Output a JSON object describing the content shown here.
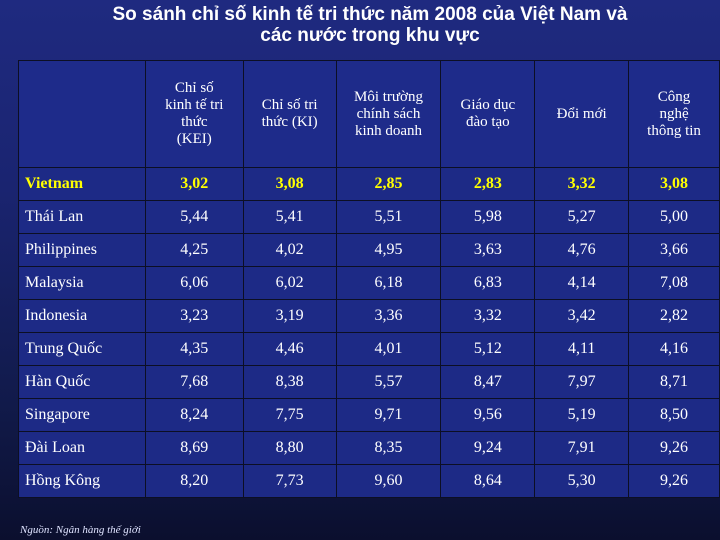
{
  "title": {
    "line1": "So sánh chỉ số kinh tế tri thức năm 2008 của Việt Nam và",
    "line2": "các nước trong khu vực"
  },
  "table": {
    "headers": [
      "",
      "Chỉ số\nkinh tế tri\nthức\n(KEI)",
      "Chỉ số tri\nthức (KI)",
      "Môi trường\nchính sách\nkinh doanh",
      "Giáo dục\nđào tạo",
      "Đổi mới",
      "Công\nnghệ\nthông tin"
    ],
    "rows": [
      {
        "country": "Vietnam",
        "values": [
          "3,02",
          "3,08",
          "2,85",
          "2,83",
          "3,32",
          "3,08"
        ]
      },
      {
        "country": "Thái Lan",
        "values": [
          "5,44",
          "5,41",
          "5,51",
          "5,98",
          "5,27",
          "5,00"
        ]
      },
      {
        "country": "Philippines",
        "values": [
          "4,25",
          "4,02",
          "4,95",
          "3,63",
          "4,76",
          "3,66"
        ]
      },
      {
        "country": "Malaysia",
        "values": [
          "6,06",
          "6,02",
          "6,18",
          "6,83",
          "4,14",
          "7,08"
        ]
      },
      {
        "country": "Indonesia",
        "values": [
          "3,23",
          "3,19",
          "3,36",
          "3,32",
          "3,42",
          "2,82"
        ]
      },
      {
        "country": "Trung Quốc",
        "values": [
          "4,35",
          "4,46",
          "4,01",
          "5,12",
          "4,11",
          "4,16"
        ]
      },
      {
        "country": "Hàn Quốc",
        "values": [
          "7,68",
          "8,38",
          "5,57",
          "8,47",
          "7,97",
          "8,71"
        ]
      },
      {
        "country": "Singapore",
        "values": [
          "8,24",
          "7,75",
          "9,71",
          "9,56",
          "5,19",
          "8,50"
        ]
      },
      {
        "country": "Đài Loan",
        "values": [
          "8,69",
          "8,80",
          "8,35",
          "9,24",
          "7,91",
          "9,26"
        ]
      },
      {
        "country": "Hồng Kông",
        "values": [
          "8,20",
          "7,73",
          "9,60",
          "8,64",
          "5,30",
          "9,26"
        ]
      }
    ]
  },
  "source": "Nguồn: Ngân hàng thế giới",
  "colors": {
    "background": "#1a2470",
    "cell": "#1d2a86",
    "text": "#ffffff",
    "highlight": "#ffff00"
  }
}
